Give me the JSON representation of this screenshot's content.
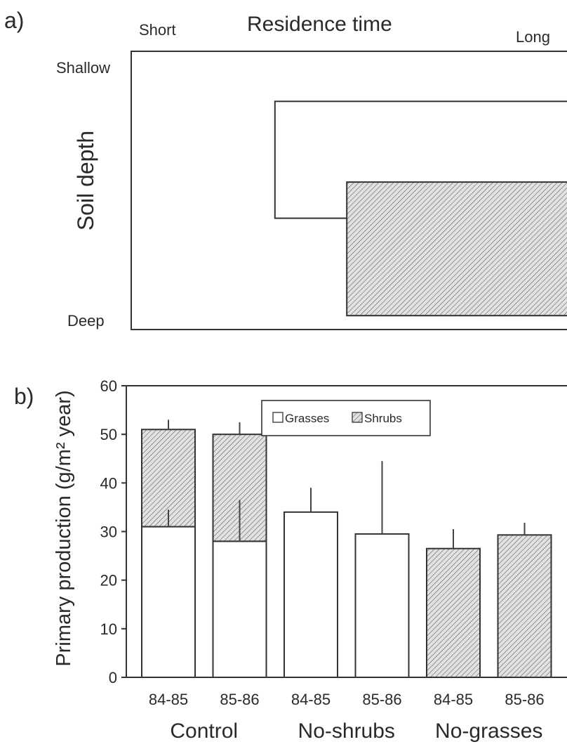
{
  "panel_a": {
    "label": "a)",
    "title": "Residence time",
    "x_left_label": "Short",
    "x_right_label": "Long",
    "y_label": "Soil depth",
    "y_top_label": "Shallow",
    "y_bottom_label": "Deep",
    "boxes": [
      {
        "kind": "grasses",
        "fill": "none",
        "residence_start": 0.32,
        "depth_top": 0.18,
        "depth_bottom": 0.6
      },
      {
        "kind": "shrubs",
        "fill": "hatched",
        "residence_start": 0.48,
        "depth_top": 0.47,
        "depth_bottom": 0.95
      }
    ]
  },
  "panel_b": {
    "label": "b)",
    "legend": {
      "grasses": "Grasses",
      "shrubs": "Shrubs"
    }
  },
  "chart_data": {
    "type": "bar",
    "stacked": true,
    "ylabel": "Primary production (g/m² year)",
    "ylim": [
      0,
      60
    ],
    "yticks": [
      0,
      10,
      20,
      30,
      40,
      50,
      60
    ],
    "groups": [
      "Control",
      "No-shrubs",
      "No-grasses"
    ],
    "categories": [
      "84-85",
      "85-86",
      "84-85",
      "85-86",
      "84-85",
      "85-86"
    ],
    "series": [
      {
        "name": "Grasses",
        "pattern": "open",
        "values": [
          31,
          28,
          34,
          29.5,
          0,
          0
        ],
        "errors": [
          3.5,
          8.5,
          5,
          15,
          0,
          0
        ]
      },
      {
        "name": "Shrubs",
        "pattern": "hatched",
        "values": [
          20,
          22,
          0,
          0,
          26.5,
          29.3
        ],
        "errors": [
          2,
          2.5,
          0,
          0,
          4,
          2.5
        ]
      }
    ],
    "legend_position": "top-center",
    "grid": false
  }
}
